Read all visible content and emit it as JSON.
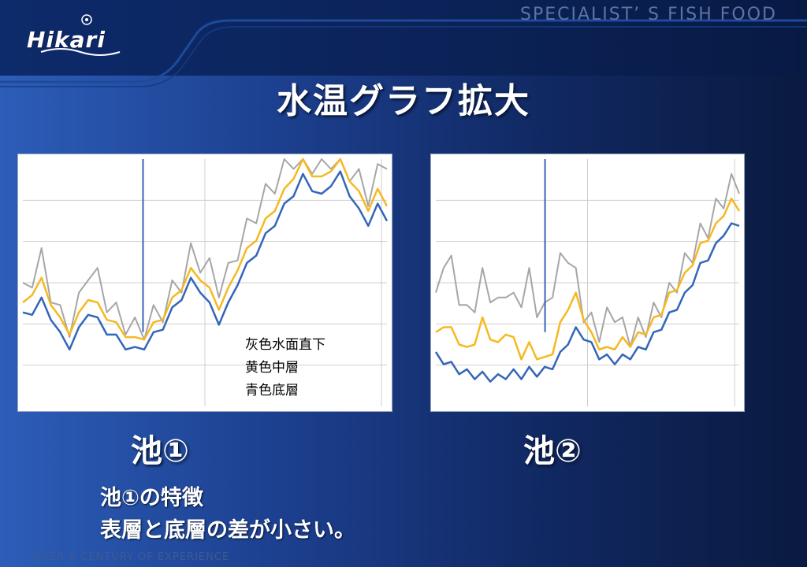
{
  "header": {
    "logo_text": "Hikari",
    "tagline": "SPECIALIST’ S  FISH FOOD"
  },
  "slide": {
    "title": "水温グラフ拡大",
    "footer": "OVER A CENTURY OF EXPERIENCE",
    "note_line1": "池①の特徴",
    "note_line2": "表層と底層の差が小さい。"
  },
  "colors": {
    "surface": "#a6a6a6",
    "middle": "#f5b921",
    "bottom": "#3466b8",
    "grid": "#cfcfcf"
  },
  "chart_data": [
    {
      "type": "line",
      "label": "池①",
      "title": "",
      "xlabel": "",
      "ylabel": "",
      "legend": [
        "灰色水面直下",
        "黄色中層",
        "青色底層"
      ],
      "legend_placement": "bottom-right",
      "grid": true,
      "xlim": [
        0,
        100
      ],
      "ylim": [
        0,
        100
      ],
      "vertical_marker_x": 33,
      "series": [
        {
          "key": "surface",
          "values": [
            44,
            52,
            58,
            46,
            35,
            32,
            40,
            55,
            50,
            42,
            36,
            33,
            30,
            31,
            35,
            38,
            45,
            50,
            60,
            58,
            54,
            48,
            52,
            63,
            70,
            78,
            84,
            90,
            96,
            100,
            100,
            98,
            96,
            100,
            100,
            95,
            90,
            85,
            92,
            100
          ]
        },
        {
          "key": "middle",
          "values": [
            40,
            46,
            50,
            42,
            34,
            30,
            36,
            44,
            40,
            36,
            32,
            29,
            26,
            28,
            32,
            36,
            42,
            48,
            54,
            52,
            46,
            40,
            46,
            56,
            62,
            68,
            74,
            80,
            86,
            93,
            98,
            94,
            91,
            96,
            99,
            92,
            85,
            80,
            86,
            82
          ]
        },
        {
          "key": "bottom",
          "values": [
            36,
            38,
            42,
            36,
            28,
            24,
            30,
            38,
            34,
            30,
            27,
            24,
            22,
            24,
            28,
            32,
            38,
            44,
            50,
            47,
            40,
            34,
            40,
            50,
            56,
            62,
            68,
            74,
            80,
            86,
            92,
            88,
            84,
            90,
            93,
            86,
            78,
            74,
            80,
            76
          ]
        }
      ]
    },
    {
      "type": "line",
      "label": "池②",
      "title": "",
      "xlabel": "",
      "ylabel": "",
      "legend_placement": "none",
      "grid": true,
      "xlim": [
        0,
        100
      ],
      "ylim": [
        0,
        100
      ],
      "vertical_marker_x": 36,
      "series": [
        {
          "key": "surface",
          "values": [
            40,
            60,
            55,
            45,
            35,
            42,
            50,
            46,
            38,
            48,
            40,
            44,
            50,
            40,
            36,
            48,
            56,
            62,
            50,
            38,
            32,
            30,
            34,
            38,
            30,
            28,
            30,
            32,
            36,
            40,
            44,
            50,
            56,
            62,
            68,
            72,
            78,
            84,
            88,
            90
          ]
        },
        {
          "key": "middle",
          "values": [
            28,
            33,
            30,
            26,
            22,
            26,
            34,
            28,
            24,
            30,
            26,
            20,
            24,
            20,
            18,
            22,
            32,
            40,
            44,
            36,
            28,
            24,
            22,
            24,
            26,
            25,
            28,
            30,
            34,
            38,
            44,
            48,
            52,
            58,
            64,
            68,
            72,
            78,
            82,
            80
          ]
        },
        {
          "key": "bottom",
          "values": [
            20,
            18,
            16,
            14,
            13,
            12,
            12,
            11,
            11,
            12,
            13,
            12,
            14,
            13,
            14,
            16,
            20,
            26,
            30,
            28,
            24,
            20,
            19,
            18,
            19,
            20,
            22,
            24,
            28,
            32,
            36,
            40,
            44,
            50,
            56,
            60,
            64,
            70,
            72,
            74
          ]
        }
      ]
    }
  ]
}
